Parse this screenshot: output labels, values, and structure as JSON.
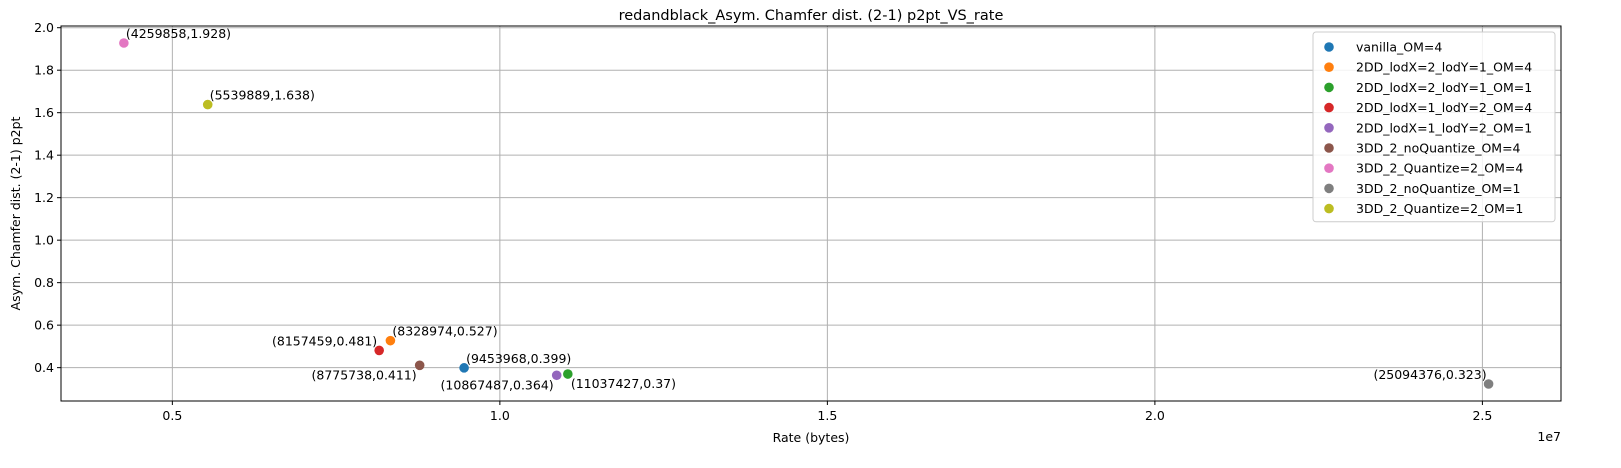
{
  "chart_data": {
    "type": "scatter",
    "title": "redandblack_Asym. Chamfer dist. (2-1) p2pt_VS_rate",
    "xlabel": "Rate (bytes)",
    "ylabel": "Asym. Chamfer dist. (2-1) p2pt",
    "x_offset_label": "1e7",
    "x_scale": 10000000,
    "xlim": [
      3300000,
      26200000
    ],
    "ylim": [
      0.243,
      2.008
    ],
    "grid": true,
    "legend_position": "top-right",
    "x_ticks": [
      {
        "value": 5000000,
        "label": "0.5"
      },
      {
        "value": 10000000,
        "label": "1.0"
      },
      {
        "value": 15000000,
        "label": "1.5"
      },
      {
        "value": 20000000,
        "label": "2.0"
      },
      {
        "value": 25000000,
        "label": "2.5"
      }
    ],
    "y_ticks": [
      {
        "value": 0.4,
        "label": "0.4"
      },
      {
        "value": 0.6,
        "label": "0.6"
      },
      {
        "value": 0.8,
        "label": "0.8"
      },
      {
        "value": 1.0,
        "label": "1.0"
      },
      {
        "value": 1.2,
        "label": "1.2"
      },
      {
        "value": 1.4,
        "label": "1.4"
      },
      {
        "value": 1.6,
        "label": "1.6"
      },
      {
        "value": 1.8,
        "label": "1.8"
      },
      {
        "value": 2.0,
        "label": "2.0"
      }
    ],
    "series": [
      {
        "name": "vanilla_OM=4",
        "color": "#1f77b4",
        "points": [
          {
            "x": 9453968,
            "y": 0.399,
            "label": "(9453968,0.399)",
            "label_anchor": "start"
          }
        ]
      },
      {
        "name": "2DD_lodX=2_lodY=1_OM=4",
        "color": "#ff7f0e",
        "points": [
          {
            "x": 8328974,
            "y": 0.527,
            "label": "(8328974,0.527)",
            "label_anchor": "start"
          }
        ]
      },
      {
        "name": "2DD_lodX=2_lodY=1_OM=1",
        "color": "#2ca02c",
        "points": [
          {
            "x": 11037427,
            "y": 0.37,
            "label": "(11037427,0.37)",
            "label_anchor": "start-below"
          }
        ]
      },
      {
        "name": "2DD_lodX=1_lodY=2_OM=4",
        "color": "#d62728",
        "points": [
          {
            "x": 8157459,
            "y": 0.481,
            "label": "(8157459,0.481)",
            "label_anchor": "end"
          }
        ]
      },
      {
        "name": "2DD_lodX=1_lodY=2_OM=1",
        "color": "#9467bd",
        "points": [
          {
            "x": 10867487,
            "y": 0.364,
            "label": "(10867487,0.364)",
            "label_anchor": "end-below"
          }
        ]
      },
      {
        "name": "3DD_2_noQuantize_OM=4",
        "color": "#8c564b",
        "points": [
          {
            "x": 8775738,
            "y": 0.411,
            "label": "(8775738,0.411)",
            "label_anchor": "end-below"
          }
        ]
      },
      {
        "name": "3DD_2_Quantize=2_OM=4",
        "color": "#e377c2",
        "points": [
          {
            "x": 4259858,
            "y": 1.928,
            "label": "(4259858,1.928)",
            "label_anchor": "start"
          }
        ]
      },
      {
        "name": "3DD_2_noQuantize_OM=1",
        "color": "#7f7f7f",
        "points": [
          {
            "x": 25094376,
            "y": 0.323,
            "label": "(25094376,0.323)",
            "label_anchor": "end"
          }
        ]
      },
      {
        "name": "3DD_2_Quantize=2_OM=1",
        "color": "#bcbd22",
        "points": [
          {
            "x": 5539889,
            "y": 1.638,
            "label": "(5539889,1.638)",
            "label_anchor": "start"
          }
        ]
      }
    ]
  }
}
